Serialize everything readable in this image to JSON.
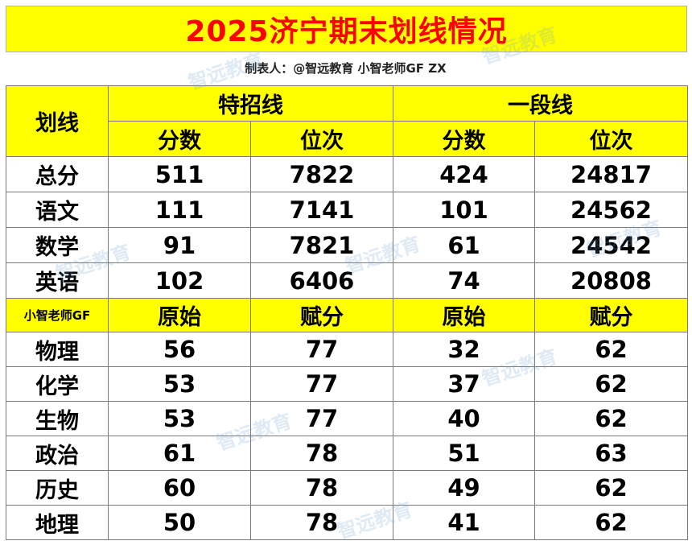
{
  "title": "2025济宁期末划线情况",
  "maker": "制表人：@智远教育 小智老师GF ZX",
  "corner_label": "划线",
  "groups": [
    "特招线",
    "一段线"
  ],
  "sub_headers_1": [
    "分数",
    "位次",
    "分数",
    "位次"
  ],
  "main_rows": [
    {
      "subject": "总分",
      "values": [
        "511",
        "7822",
        "424",
        "24817"
      ]
    },
    {
      "subject": "语文",
      "values": [
        "111",
        "7141",
        "101",
        "24562"
      ]
    },
    {
      "subject": "数学",
      "values": [
        "91",
        "7821",
        "61",
        "24542"
      ]
    },
    {
      "subject": "英语",
      "values": [
        "102",
        "6406",
        "74",
        "20808"
      ]
    }
  ],
  "section2_label": "小智老师GF",
  "sub_headers_2": [
    "原始",
    "赋分",
    "原始",
    "赋分"
  ],
  "elective_rows": [
    {
      "subject": "物理",
      "values": [
        "56",
        "77",
        "32",
        "62"
      ]
    },
    {
      "subject": "化学",
      "values": [
        "53",
        "77",
        "37",
        "62"
      ]
    },
    {
      "subject": "生物",
      "values": [
        "53",
        "77",
        "40",
        "62"
      ]
    },
    {
      "subject": "政治",
      "values": [
        "61",
        "78",
        "51",
        "63"
      ]
    },
    {
      "subject": "历史",
      "values": [
        "60",
        "78",
        "49",
        "62"
      ]
    },
    {
      "subject": "地理",
      "values": [
        "50",
        "78",
        "41",
        "62"
      ]
    }
  ],
  "watermark_text": "智远教育",
  "colors": {
    "header_yellow": "#ffff00",
    "title_red": "#ff0000",
    "border": "#7a7a7a"
  }
}
